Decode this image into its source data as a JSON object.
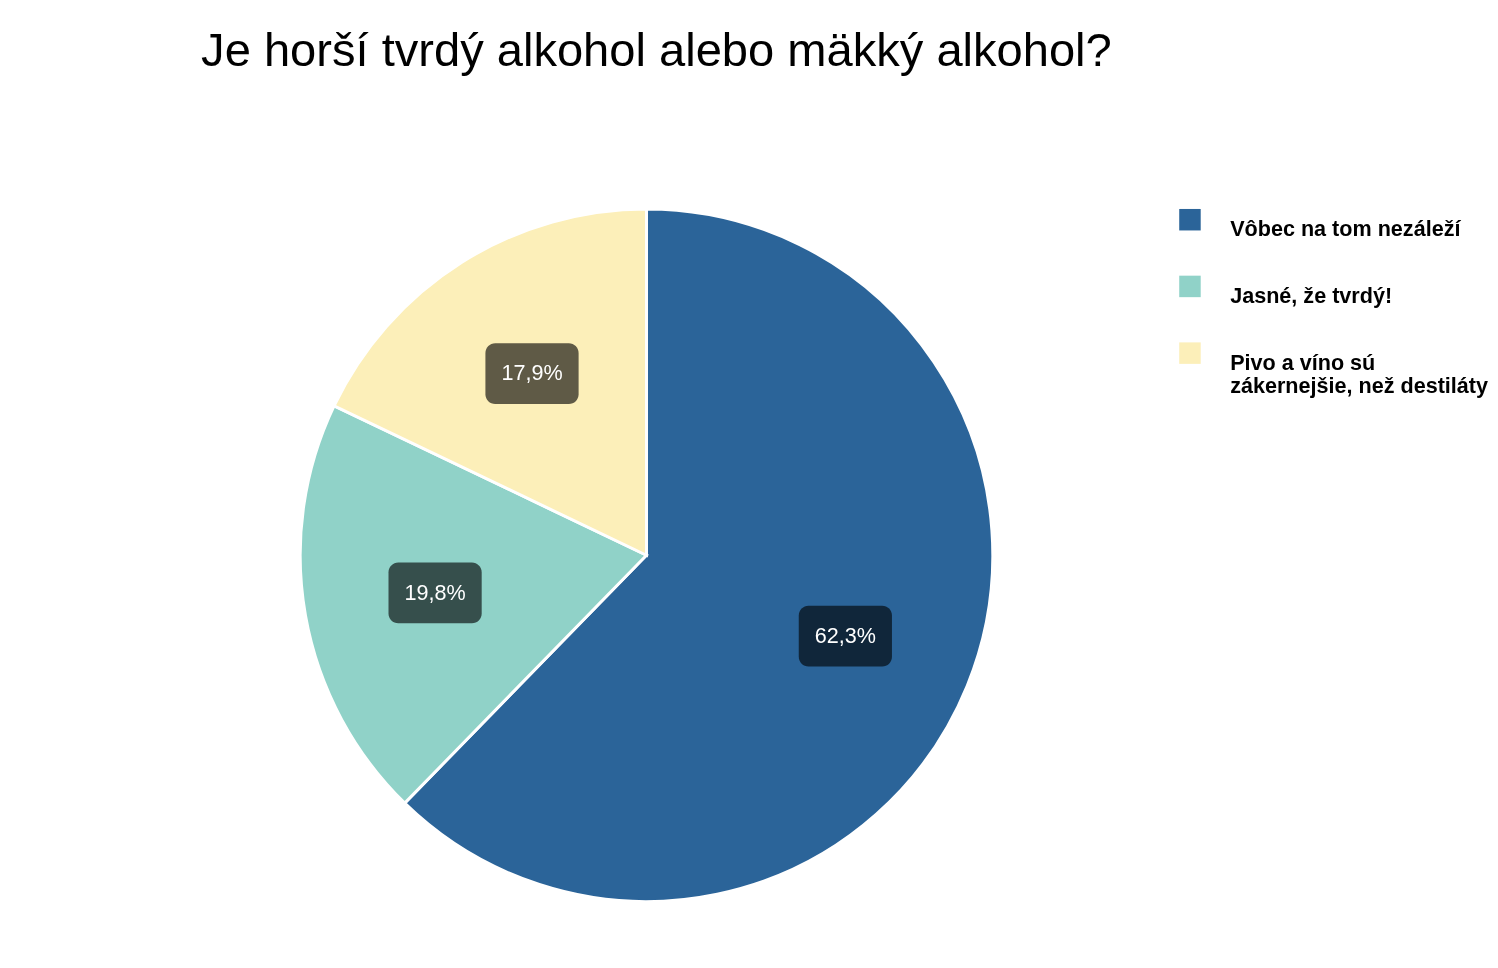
{
  "chart_data": {
    "type": "pie",
    "title": "Je horší tvrdý alkohol alebo mäkký alkohol?",
    "categories": [
      "Vôbec na tom nezáleží",
      "Jasné, že tvrdý!",
      "Pivo a víno sú zákernejšie, než destiláty"
    ],
    "values": [
      62.3,
      19.8,
      17.9
    ],
    "value_labels": [
      "62,3%",
      "19,8%",
      "17,9%"
    ],
    "colors": [
      "#2b6499",
      "#90d2c8",
      "#fcefb9"
    ],
    "legend": "right"
  }
}
